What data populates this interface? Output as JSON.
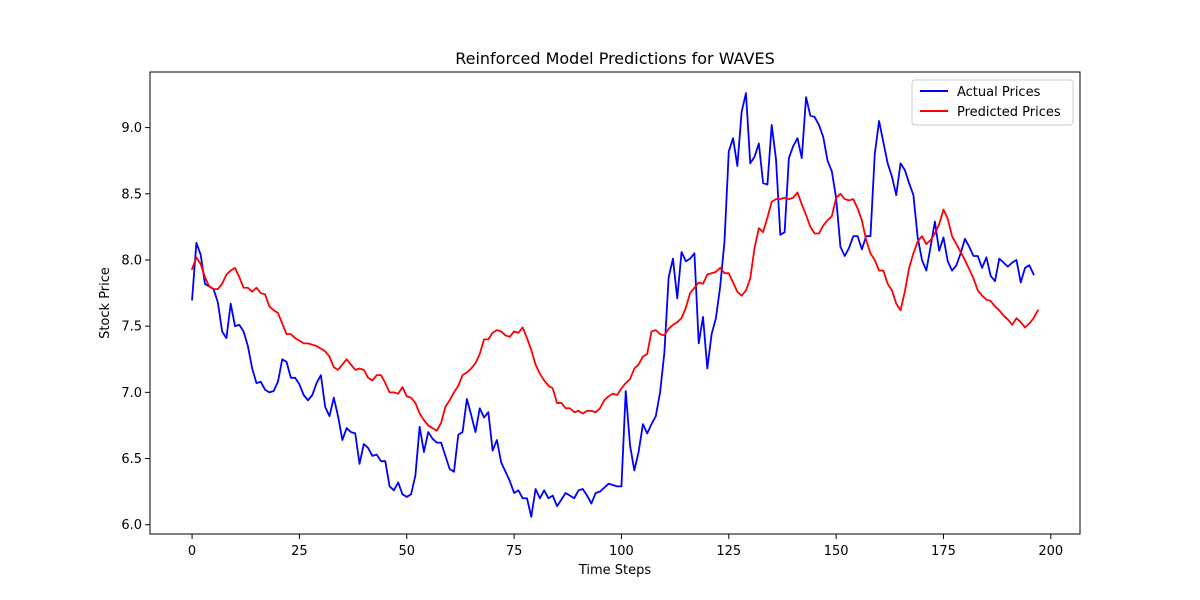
{
  "chart_data": {
    "type": "line",
    "title": "Reinforced Model Predictions for WAVES",
    "xlabel": "Time Steps",
    "ylabel": "Stock Price",
    "xlim": [
      -9.8,
      206.8
    ],
    "ylim": [
      5.93,
      9.42
    ],
    "xticks": [
      0,
      25,
      50,
      75,
      100,
      125,
      150,
      175,
      200
    ],
    "yticks": [
      6.0,
      6.5,
      7.0,
      7.5,
      8.0,
      8.5,
      9.0
    ],
    "ytick_labels": [
      "6.0",
      "6.5",
      "7.0",
      "7.5",
      "8.0",
      "8.5",
      "9.0"
    ],
    "grid": false,
    "legend": {
      "position": "top-right"
    },
    "series": [
      {
        "name": "Actual Prices",
        "color": "#0000ff",
        "values": [
          7.7,
          8.13,
          8.04,
          7.82,
          7.8,
          7.78,
          7.68,
          7.46,
          7.41,
          7.67,
          7.5,
          7.51,
          7.46,
          7.35,
          7.18,
          7.07,
          7.08,
          7.02,
          7.0,
          7.01,
          7.08,
          7.25,
          7.23,
          7.11,
          7.11,
          7.06,
          6.98,
          6.94,
          6.98,
          7.07,
          7.13,
          6.89,
          6.82,
          6.96,
          6.82,
          6.64,
          6.73,
          6.7,
          6.69,
          6.46,
          6.61,
          6.58,
          6.52,
          6.53,
          6.48,
          6.48,
          6.29,
          6.26,
          6.32,
          6.23,
          6.21,
          6.23,
          6.37,
          6.74,
          6.55,
          6.7,
          6.65,
          6.62,
          6.62,
          6.52,
          6.42,
          6.4,
          6.68,
          6.7,
          6.95,
          6.83,
          6.7,
          6.88,
          6.81,
          6.85,
          6.56,
          6.64,
          6.47,
          6.4,
          6.33,
          6.24,
          6.26,
          6.2,
          6.2,
          6.06,
          6.27,
          6.2,
          6.26,
          6.2,
          6.22,
          6.14,
          6.19,
          6.24,
          6.22,
          6.2,
          6.26,
          6.27,
          6.22,
          6.16,
          6.24,
          6.25,
          6.28,
          6.31,
          6.3,
          6.29,
          6.29,
          7.01,
          6.6,
          6.41,
          6.55,
          6.76,
          6.69,
          6.76,
          6.82,
          7.0,
          7.3,
          7.87,
          8.01,
          7.71,
          8.06,
          7.99,
          8.01,
          8.05,
          7.37,
          7.57,
          7.18,
          7.44,
          7.56,
          7.8,
          8.14,
          8.82,
          8.92,
          8.71,
          9.12,
          9.26,
          8.73,
          8.78,
          8.88,
          8.58,
          8.57,
          9.02,
          8.76,
          8.19,
          8.21,
          8.77,
          8.86,
          8.92,
          8.77,
          9.23,
          9.09,
          9.08,
          9.02,
          8.93,
          8.75,
          8.67,
          8.47,
          8.1,
          8.03,
          8.09,
          8.18,
          8.18,
          8.08,
          8.18,
          8.18,
          8.8,
          9.05,
          8.89,
          8.73,
          8.63,
          8.49,
          8.73,
          8.68,
          8.58,
          8.49,
          8.17,
          8.0,
          7.92,
          8.1,
          8.29,
          8.07,
          8.17,
          7.99,
          7.92,
          7.96,
          8.05,
          8.16,
          8.1,
          8.03,
          8.03,
          7.94,
          8.02,
          7.88,
          7.84,
          8.01,
          7.98,
          7.95,
          7.98,
          8.0,
          7.83,
          7.94,
          7.96,
          7.89
        ]
      },
      {
        "name": "Predicted Prices",
        "color": "#ff0000",
        "values": [
          7.93,
          8.02,
          7.97,
          7.87,
          7.8,
          7.78,
          7.78,
          7.82,
          7.89,
          7.92,
          7.94,
          7.87,
          7.79,
          7.79,
          7.76,
          7.79,
          7.75,
          7.74,
          7.65,
          7.62,
          7.6,
          7.52,
          7.44,
          7.44,
          7.41,
          7.39,
          7.37,
          7.37,
          7.36,
          7.35,
          7.33,
          7.31,
          7.27,
          7.19,
          7.17,
          7.21,
          7.25,
          7.21,
          7.17,
          7.18,
          7.17,
          7.11,
          7.09,
          7.13,
          7.13,
          7.07,
          7.0,
          7.0,
          6.99,
          7.04,
          6.97,
          6.96,
          6.92,
          6.84,
          6.79,
          6.75,
          6.73,
          6.71,
          6.77,
          6.89,
          6.94,
          7.0,
          7.05,
          7.13,
          7.15,
          7.18,
          7.22,
          7.29,
          7.4,
          7.4,
          7.45,
          7.47,
          7.46,
          7.43,
          7.42,
          7.46,
          7.45,
          7.49,
          7.41,
          7.32,
          7.21,
          7.14,
          7.09,
          7.05,
          7.03,
          6.92,
          6.92,
          6.88,
          6.88,
          6.85,
          6.86,
          6.84,
          6.86,
          6.86,
          6.85,
          6.88,
          6.94,
          6.97,
          6.99,
          6.98,
          7.03,
          7.07,
          7.1,
          7.18,
          7.21,
          7.27,
          7.29,
          7.46,
          7.47,
          7.44,
          7.43,
          7.48,
          7.51,
          7.53,
          7.56,
          7.64,
          7.75,
          7.79,
          7.83,
          7.82,
          7.89,
          7.9,
          7.91,
          7.94,
          7.9,
          7.9,
          7.83,
          7.76,
          7.73,
          7.77,
          7.86,
          8.09,
          8.24,
          8.21,
          8.32,
          8.44,
          8.46,
          8.46,
          8.47,
          8.46,
          8.47,
          8.51,
          8.42,
          8.34,
          8.25,
          8.2,
          8.2,
          8.26,
          8.3,
          8.33,
          8.47,
          8.5,
          8.46,
          8.45,
          8.46,
          8.39,
          8.3,
          8.15,
          8.05,
          8.0,
          7.92,
          7.92,
          7.82,
          7.77,
          7.67,
          7.62,
          7.76,
          7.94,
          8.05,
          8.14,
          8.18,
          8.12,
          8.15,
          8.2,
          8.27,
          8.38,
          8.31,
          8.18,
          8.12,
          8.06,
          8.0,
          7.93,
          7.86,
          7.77,
          7.73,
          7.7,
          7.69,
          7.65,
          7.62,
          7.58,
          7.55,
          7.51,
          7.56,
          7.53,
          7.49,
          7.52,
          7.56,
          7.62
        ]
      }
    ]
  }
}
